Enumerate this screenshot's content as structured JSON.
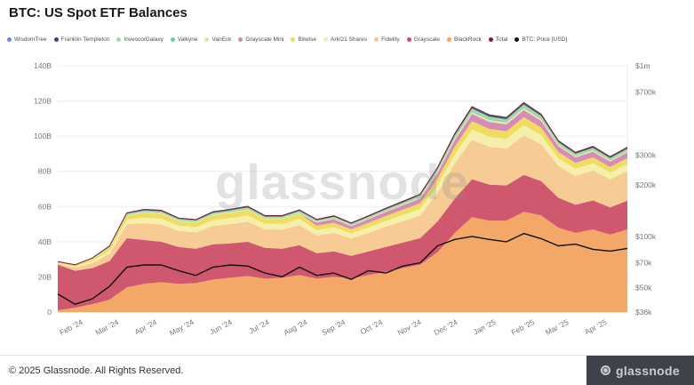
{
  "title": "BTC: US Spot ETF Balances",
  "watermark": "glassnode",
  "footer": {
    "copyright": "© 2025 Glassnode. All Rights Reserved.",
    "brand": "glassnode"
  },
  "legend": [
    {
      "label": "WisdomTree",
      "color": "#5C8FD6"
    },
    {
      "label": "Franklin Templeton",
      "color": "#2D4B73"
    },
    {
      "label": "Invesco/Galaxy",
      "color": "#A7D7A0"
    },
    {
      "label": "Valkyrie",
      "color": "#6FC9A8"
    },
    {
      "label": "VanEck",
      "color": "#DCE9A3"
    },
    {
      "label": "Grayscale Mini",
      "color": "#D685B5"
    },
    {
      "label": "Bitwise",
      "color": "#EDDC5A"
    },
    {
      "label": "Ark/21 Shares",
      "color": "#F6EDA8"
    },
    {
      "label": "Fidelity",
      "color": "#F6C990"
    },
    {
      "label": "Grayscale",
      "color": "#CE5168"
    },
    {
      "label": "BlackRock",
      "color": "#F3A462"
    },
    {
      "label": "Total",
      "color": "#7C1D2E"
    },
    {
      "label": "BTC: Price [USD]",
      "color": "#111111"
    }
  ],
  "chart_data": {
    "type": "area",
    "stacked": true,
    "title": "BTC: US Spot ETF Balances",
    "units_left": "USD billions",
    "units_right": "USD per BTC (log scale)",
    "x_dates": [
      "2024-01-11",
      "2024-01-25",
      "2024-02-08",
      "2024-02-22",
      "2024-03-07",
      "2024-03-21",
      "2024-04-04",
      "2024-04-18",
      "2024-05-02",
      "2024-05-16",
      "2024-05-30",
      "2024-06-13",
      "2024-06-27",
      "2024-07-11",
      "2024-07-25",
      "2024-08-08",
      "2024-08-22",
      "2024-09-05",
      "2024-09-19",
      "2024-10-03",
      "2024-10-17",
      "2024-10-31",
      "2024-11-14",
      "2024-11-28",
      "2024-12-12",
      "2024-12-26",
      "2025-01-09",
      "2025-01-23",
      "2025-02-06",
      "2025-02-20",
      "2025-03-06",
      "2025-03-20",
      "2025-04-03",
      "2025-04-17"
    ],
    "x_ticks": [
      {
        "label": "Feb '24",
        "t": 0.045
      },
      {
        "label": "Mar '24",
        "t": 0.108
      },
      {
        "label": "Apr '24",
        "t": 0.175
      },
      {
        "label": "May '24",
        "t": 0.24
      },
      {
        "label": "Jun '24",
        "t": 0.307
      },
      {
        "label": "Jul '24",
        "t": 0.372
      },
      {
        "label": "Aug '24",
        "t": 0.439
      },
      {
        "label": "Sep '24",
        "t": 0.506
      },
      {
        "label": "Oct '24",
        "t": 0.571
      },
      {
        "label": "Nov '24",
        "t": 0.639
      },
      {
        "label": "Dec '24",
        "t": 0.703
      },
      {
        "label": "Jan '25",
        "t": 0.77
      },
      {
        "label": "Feb '25",
        "t": 0.838
      },
      {
        "label": "Mar '25",
        "t": 0.898
      },
      {
        "label": "Apr '25",
        "t": 0.965
      }
    ],
    "y_left": {
      "max": 140,
      "ticks": [
        0,
        20,
        40,
        60,
        80,
        100,
        120,
        140
      ],
      "tick_labels": [
        "0",
        "20B",
        "40B",
        "60B",
        "80B",
        "100B",
        "120B",
        "140B"
      ]
    },
    "y_right": {
      "scale": "log",
      "min_k": 36,
      "max_k": 1000,
      "ticks_k": [
        36,
        50,
        70,
        100,
        200,
        300,
        700,
        1000
      ],
      "tick_labels": [
        "$36k",
        "$50k",
        "$70k",
        "$100k",
        "$200k",
        "$300k",
        "$700k",
        "$1m"
      ]
    },
    "series": [
      {
        "name": "BlackRock",
        "color": "#F3A462",
        "values": [
          1,
          2.5,
          4.5,
          7,
          14,
          16,
          17,
          16,
          16.5,
          18.5,
          19.5,
          20.5,
          19,
          19.5,
          21,
          19,
          20,
          19,
          21,
          23,
          25,
          27,
          34,
          45,
          54,
          52,
          52,
          57,
          55,
          48,
          45,
          47,
          44,
          47
        ]
      },
      {
        "name": "Grayscale",
        "color": "#CE5168",
        "values": [
          26,
          21,
          20.5,
          22,
          28,
          25,
          23,
          21,
          19.5,
          20,
          19.5,
          19.5,
          17.5,
          16.5,
          17,
          14.5,
          14.5,
          13,
          13.5,
          14,
          14.5,
          15,
          17.5,
          19.5,
          21.5,
          20.5,
          20,
          21,
          19.5,
          17,
          16,
          16.5,
          15.5,
          16.3
        ]
      },
      {
        "name": "Fidelity",
        "color": "#F6C990",
        "values": [
          0.8,
          1.6,
          2.8,
          4.2,
          8,
          9.5,
          9.8,
          9.2,
          9.3,
          10.5,
          11,
          11.5,
          10.5,
          10.8,
          11.5,
          10,
          10.5,
          9.8,
          10.6,
          11.5,
          12.2,
          13,
          16,
          20,
          22.5,
          21.5,
          21,
          22.5,
          21,
          18,
          16.5,
          17,
          16,
          16.8
        ]
      },
      {
        "name": "Ark/21 Shares",
        "color": "#F6EDA8",
        "values": [
          0.3,
          0.7,
          1.2,
          1.8,
          2.6,
          3.2,
          3.3,
          3,
          3,
          3.3,
          3.4,
          3.5,
          3.2,
          3.3,
          3.5,
          3,
          3.1,
          2.8,
          3,
          3.3,
          3.5,
          3.7,
          4.5,
          5.2,
          5.8,
          5.6,
          5.4,
          5.7,
          5.2,
          4.4,
          4,
          4.1,
          3.8,
          4
        ]
      },
      {
        "name": "Bitwise",
        "color": "#EDDC5A",
        "values": [
          0.3,
          0.6,
          1,
          1.5,
          2.2,
          2.7,
          2.8,
          2.5,
          2.5,
          2.8,
          2.9,
          3,
          2.7,
          2.8,
          3,
          2.6,
          2.7,
          2.4,
          2.6,
          2.8,
          3,
          3.2,
          3.8,
          4.3,
          4.7,
          4.5,
          4.4,
          4.6,
          4.2,
          3.6,
          3.3,
          3.4,
          3.2,
          3.4
        ]
      },
      {
        "name": "Grayscale Mini",
        "color": "#D685B5",
        "values": [
          0,
          0,
          0,
          0,
          0,
          0,
          0,
          0,
          0,
          0,
          0,
          0,
          0,
          0,
          0,
          1.8,
          2,
          1.9,
          2.1,
          2.3,
          2.5,
          2.7,
          3.2,
          3.7,
          4.1,
          4,
          3.9,
          4.1,
          3.8,
          3.3,
          3.1,
          3.2,
          3,
          3.2
        ]
      },
      {
        "name": "VanEck",
        "color": "#DCE9A3",
        "values": [
          0.1,
          0.15,
          0.2,
          0.3,
          0.45,
          0.55,
          0.55,
          0.5,
          0.5,
          0.55,
          0.6,
          0.6,
          0.55,
          0.55,
          0.6,
          0.5,
          0.55,
          0.5,
          0.55,
          0.6,
          0.65,
          0.7,
          0.9,
          1.1,
          1.25,
          1.2,
          1.2,
          1.25,
          1.15,
          0.95,
          0.85,
          0.9,
          0.85,
          0.9
        ]
      },
      {
        "name": "Valkyrie",
        "color": "#6FC9A8",
        "values": [
          0.05,
          0.08,
          0.1,
          0.15,
          0.22,
          0.28,
          0.28,
          0.25,
          0.25,
          0.28,
          0.3,
          0.3,
          0.27,
          0.28,
          0.3,
          0.25,
          0.27,
          0.25,
          0.27,
          0.3,
          0.32,
          0.35,
          0.45,
          0.55,
          0.6,
          0.58,
          0.56,
          0.6,
          0.55,
          0.45,
          0.4,
          0.42,
          0.4,
          0.42
        ]
      },
      {
        "name": "Invesco/Galaxy",
        "color": "#A7D7A0",
        "values": [
          0.1,
          0.15,
          0.25,
          0.35,
          0.5,
          0.6,
          0.6,
          0.55,
          0.55,
          0.6,
          0.65,
          0.65,
          0.6,
          0.6,
          0.65,
          0.55,
          0.6,
          0.55,
          0.6,
          0.65,
          0.7,
          0.75,
          0.95,
          1.1,
          1.25,
          1.2,
          1.15,
          1.25,
          1.15,
          0.95,
          0.85,
          0.9,
          0.85,
          0.9
        ]
      },
      {
        "name": "Franklin Templeton",
        "color": "#2D4B73",
        "values": [
          0.05,
          0.08,
          0.12,
          0.18,
          0.28,
          0.35,
          0.35,
          0.32,
          0.32,
          0.35,
          0.37,
          0.38,
          0.34,
          0.35,
          0.38,
          0.32,
          0.34,
          0.31,
          0.34,
          0.37,
          0.4,
          0.43,
          0.55,
          0.65,
          0.72,
          0.7,
          0.68,
          0.72,
          0.66,
          0.55,
          0.5,
          0.52,
          0.49,
          0.51
        ]
      },
      {
        "name": "WisdomTree",
        "color": "#5C8FD6",
        "values": [
          0.02,
          0.04,
          0.06,
          0.09,
          0.14,
          0.18,
          0.18,
          0.16,
          0.16,
          0.18,
          0.19,
          0.19,
          0.17,
          0.18,
          0.19,
          0.16,
          0.17,
          0.16,
          0.17,
          0.19,
          0.2,
          0.22,
          0.28,
          0.33,
          0.36,
          0.35,
          0.34,
          0.36,
          0.33,
          0.28,
          0.25,
          0.26,
          0.25,
          0.26
        ]
      }
    ],
    "total": {
      "name": "Total",
      "color": "#7C1D2E"
    },
    "price": {
      "name": "BTC: Price [USD]",
      "color": "#111111",
      "values_k": [
        46,
        40,
        43,
        51,
        66,
        68,
        68,
        63,
        59,
        66,
        68,
        67,
        61,
        58,
        66,
        59,
        61,
        56,
        63,
        61,
        67,
        70,
        88,
        96,
        100,
        96,
        93,
        104,
        97,
        88,
        90,
        84,
        82,
        85
      ]
    }
  }
}
